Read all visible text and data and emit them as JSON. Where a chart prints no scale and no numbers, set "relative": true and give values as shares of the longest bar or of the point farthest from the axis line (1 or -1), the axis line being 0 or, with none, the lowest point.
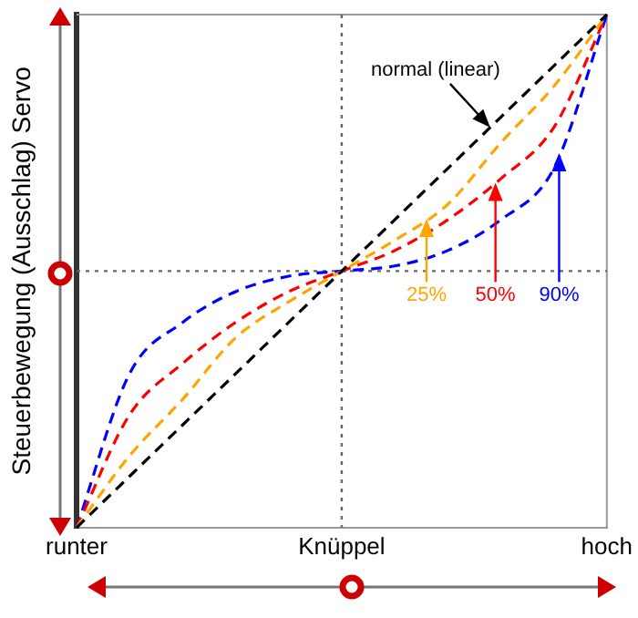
{
  "chart_data": {
    "type": "line",
    "relative": true,
    "ylabel": "Steuerbewegung (Ausschlag) Servo",
    "categories": [
      "runter",
      null,
      null,
      null,
      null,
      "Knüppel",
      null,
      null,
      null,
      null,
      "hoch"
    ],
    "series": [
      {
        "color": "#000000",
        "values": [
          0,
          0.1,
          0.2,
          0.3,
          0.4,
          0.5,
          0.6,
          0.7,
          0.8,
          0.9,
          1
        ]
      },
      {
        "color": "#ffa500",
        "values": [
          0,
          0.14,
          0.25,
          0.37,
          0.44,
          0.5,
          0.56,
          0.63,
          0.75,
          0.86,
          1
        ]
      },
      {
        "color": "#ff0000",
        "values": [
          0,
          0.22,
          0.32,
          0.4,
          0.46,
          0.5,
          0.54,
          0.6,
          0.68,
          0.78,
          1
        ]
      },
      {
        "color": "#0000ff",
        "values": [
          0,
          0.3,
          0.4,
          0.46,
          0.49,
          0.5,
          0.51,
          0.54,
          0.6,
          0.7,
          1
        ]
      }
    ],
    "annotations": [
      "normal (linear)",
      "25%",
      "50%",
      "90%"
    ],
    "ref_lines": [
      {
        "axis": "x",
        "value": "Knüppel",
        "color": "#666666",
        "line_style": "dotted"
      },
      {
        "axis": "y",
        "value": 0.5,
        "color": "#666666",
        "line_style": "dotted"
      }
    ],
    "line_style": "dashed",
    "marker": "none",
    "legend": false,
    "grid": false
  }
}
